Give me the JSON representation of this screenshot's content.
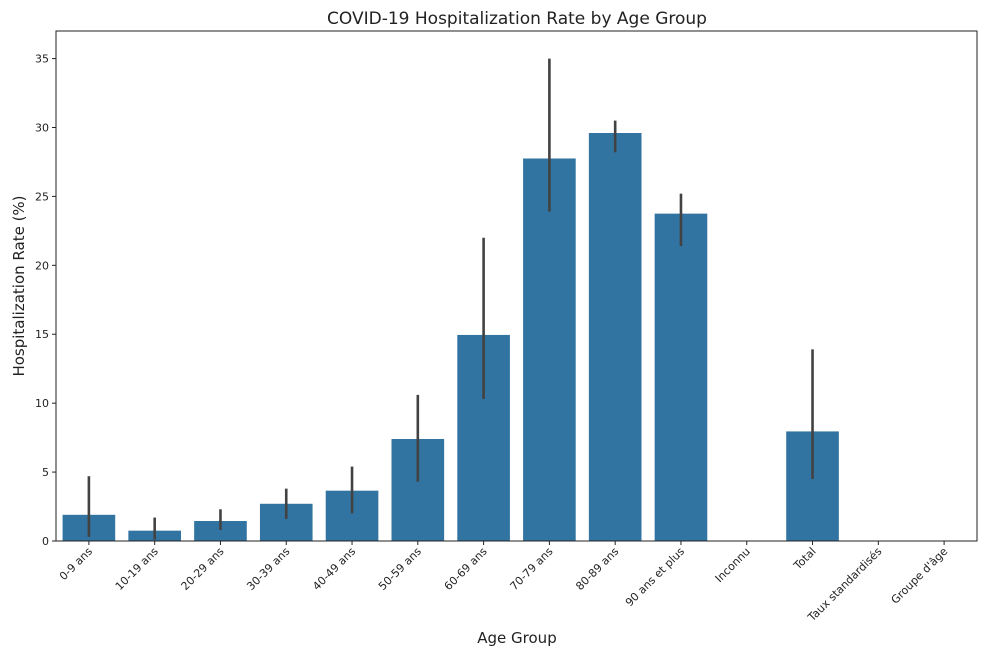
{
  "chart_data": {
    "type": "bar",
    "title": "COVID-19 Hospitalization Rate by Age Group",
    "xlabel": "Age Group",
    "ylabel": "Hospitalization Rate (%)",
    "ylim": [
      0,
      37
    ],
    "yticks": [
      0,
      5,
      10,
      15,
      20,
      25,
      30,
      35
    ],
    "categories": [
      "0-9 ans",
      "10-19 ans",
      "20-29 ans",
      "30-39 ans",
      "40-49 ans",
      "50-59 ans",
      "60-69 ans",
      "70-79 ans",
      "80-89 ans",
      "90 ans et plus",
      "Inconnu",
      "Total",
      "Taux standardisés",
      "Groupe d'âge"
    ],
    "values": [
      1.9,
      0.75,
      1.45,
      2.7,
      3.65,
      7.4,
      14.95,
      27.75,
      29.6,
      23.75,
      null,
      7.95,
      null,
      null
    ],
    "error_low": [
      0.3,
      0.1,
      0.8,
      1.6,
      2.0,
      4.3,
      10.3,
      23.9,
      28.2,
      21.4,
      null,
      4.5,
      null,
      null
    ],
    "error_high": [
      4.7,
      1.7,
      2.3,
      3.8,
      5.4,
      10.6,
      22.0,
      35.0,
      30.5,
      25.2,
      null,
      13.9,
      null,
      null
    ],
    "bar_color": "#3274a1",
    "error_color": "#424242",
    "grid": false,
    "legend": "none"
  }
}
